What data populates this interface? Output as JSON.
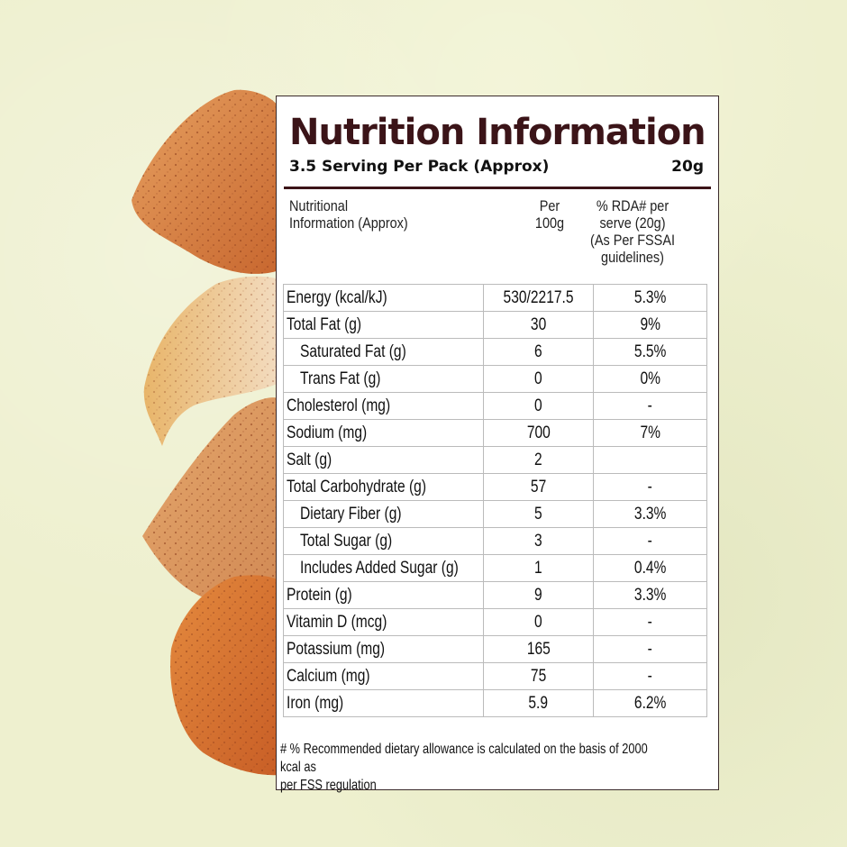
{
  "panel": {
    "title": "Nutrition Information",
    "serving_text": "3.5 Serving Per Pack (Approx)",
    "serving_size": "20g"
  },
  "header": {
    "col1_line1": "Nutritional",
    "col1_line2": "Information (Approx)",
    "col2_line1": "Per",
    "col2_line2": "100g",
    "col3_line1": "% RDA# per",
    "col3_line2": "serve (20g)",
    "col3_line3": "(As Per FSSAI",
    "col3_line4": "guidelines)"
  },
  "rows": [
    {
      "name": "Energy (kcal/kJ)",
      "per100g": "530/2217.5",
      "rda": "5.3%"
    },
    {
      "name": "Total Fat (g)",
      "per100g": "30",
      "rda": "9%"
    },
    {
      "name": "Saturated Fat (g)",
      "per100g": "6",
      "rda": "5.5%"
    },
    {
      "name": "Trans Fat (g)",
      "per100g": "0",
      "rda": "0%"
    },
    {
      "name": "Cholesterol (mg)",
      "per100g": "0",
      "rda": "-"
    },
    {
      "name": "Sodium (mg)",
      "per100g": "700",
      "rda": "7%"
    },
    {
      "name": "Salt (g)",
      "per100g": "2",
      "rda": ""
    },
    {
      "name": "Total Carbohydrate (g)",
      "per100g": "57",
      "rda": "-"
    },
    {
      "name": "Dietary Fiber (g)",
      "per100g": "5",
      "rda": "3.3%"
    },
    {
      "name": "Total Sugar (g)",
      "per100g": "3",
      "rda": "-"
    },
    {
      "name": "Includes Added Sugar (g)",
      "per100g": "1",
      "rda": "0.4%"
    },
    {
      "name": "Protein (g)",
      "per100g": "9",
      "rda": "3.3%"
    },
    {
      "name": "Vitamin D (mcg)",
      "per100g": "0",
      "rda": "-"
    },
    {
      "name": "Potassium (mg)",
      "per100g": "165",
      "rda": "-"
    },
    {
      "name": "Calcium (mg)",
      "per100g": "75",
      "rda": "-"
    },
    {
      "name": "Iron (mg)",
      "per100g": "5.9",
      "rda": "6.2%"
    }
  ],
  "footnote_line1": "# % Recommended dietary allowance  is calculated on the basis of 2000 kcal as",
  "footnote_line2": "per FSS regulation",
  "colors": {
    "title": "#3b1418",
    "background": "#eef0cf",
    "chip": "#d9884a"
  }
}
